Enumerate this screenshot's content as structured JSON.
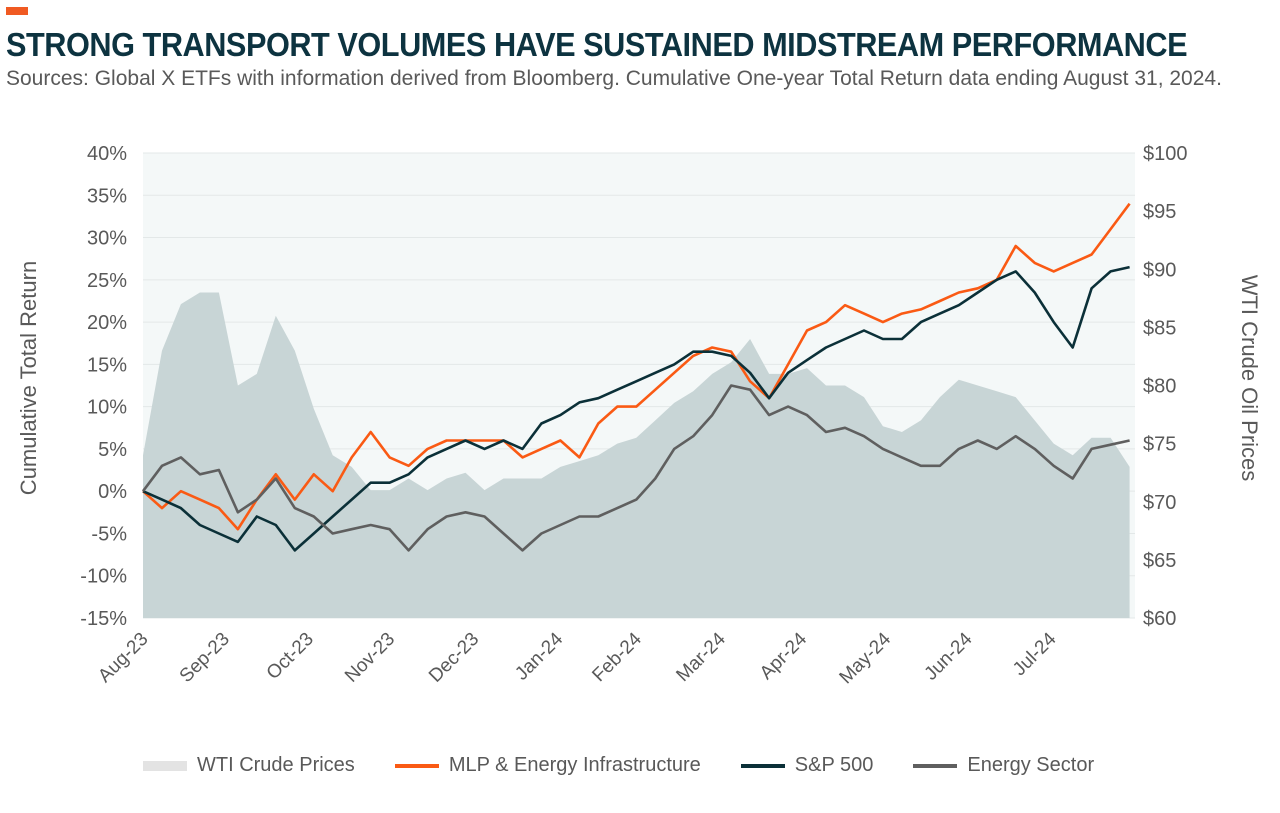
{
  "header": {
    "title": "STRONG TRANSPORT VOLUMES HAVE SUSTAINED MIDSTREAM PERFORMANCE",
    "subtitle": "Sources: Global X ETFs with information derived from Bloomberg. Cumulative One-year Total Return data ending August 31, 2024."
  },
  "colors": {
    "accent": "#f05a22",
    "title": "#0d3340",
    "wti": "#c8d5d6",
    "mlp": "#fa5a14",
    "sp500": "#0b3038",
    "energy": "#5f5f5f",
    "grid": "#e3e8e8",
    "plot_bg": "#f4f8f8"
  },
  "chart_data": {
    "type": "line",
    "ylabel": "Cumulative Total Return",
    "y2label": "WTI Crude Oil Prices",
    "ylim": [
      -15,
      40
    ],
    "y2lim": [
      60,
      100
    ],
    "yticks": [
      "-15%",
      "-10%",
      "-5%",
      "0%",
      "5%",
      "10%",
      "15%",
      "20%",
      "25%",
      "30%",
      "35%",
      "40%"
    ],
    "y2ticks": [
      "$60",
      "$65",
      "$70",
      "$75",
      "$80",
      "$85",
      "$90",
      "$95",
      "$100"
    ],
    "xticks": [
      "Aug-23",
      "Sep-23",
      "Oct-23",
      "Nov-23",
      "Dec-23",
      "Jan-24",
      "Feb-24",
      "Mar-24",
      "Apr-24",
      "May-24",
      "Jun-24",
      "Jul-24"
    ],
    "xtick_dates": [
      "2023-08-31",
      "2023-09-30",
      "2023-10-31",
      "2023-11-30",
      "2023-12-31",
      "2024-01-31",
      "2024-02-29",
      "2024-03-31",
      "2024-04-30",
      "2024-05-31",
      "2024-06-30",
      "2024-07-31"
    ],
    "xlim": [
      "2023-08-31",
      "2024-08-31"
    ],
    "grid": true,
    "legend_position": "bottom",
    "dates": [
      "2023-08-31",
      "2023-09-07",
      "2023-09-14",
      "2023-09-21",
      "2023-09-28",
      "2023-10-05",
      "2023-10-12",
      "2023-10-19",
      "2023-10-26",
      "2023-11-02",
      "2023-11-09",
      "2023-11-16",
      "2023-11-23",
      "2023-11-30",
      "2023-12-07",
      "2023-12-14",
      "2023-12-21",
      "2023-12-28",
      "2024-01-04",
      "2024-01-11",
      "2024-01-18",
      "2024-01-25",
      "2024-02-01",
      "2024-02-08",
      "2024-02-15",
      "2024-02-22",
      "2024-02-29",
      "2024-03-07",
      "2024-03-14",
      "2024-03-21",
      "2024-03-28",
      "2024-04-04",
      "2024-04-11",
      "2024-04-18",
      "2024-04-25",
      "2024-05-02",
      "2024-05-09",
      "2024-05-16",
      "2024-05-23",
      "2024-05-30",
      "2024-06-06",
      "2024-06-13",
      "2024-06-20",
      "2024-06-27",
      "2024-07-04",
      "2024-07-11",
      "2024-07-18",
      "2024-07-25",
      "2024-08-01",
      "2024-08-08",
      "2024-08-15",
      "2024-08-22",
      "2024-08-29"
    ],
    "series": [
      {
        "name": "WTI Crude Prices",
        "type": "area",
        "axis": "right",
        "values": [
          74,
          83,
          87,
          88,
          88,
          80,
          81,
          86,
          83,
          78,
          74,
          73,
          71,
          71,
          72,
          71,
          72,
          72.5,
          71,
          72,
          72,
          72,
          73,
          73.5,
          74,
          75,
          75.5,
          77,
          78.5,
          79.5,
          81,
          82,
          84,
          81,
          81,
          81.5,
          80,
          80,
          79,
          76.5,
          76,
          77,
          79,
          80.5,
          80,
          79.5,
          79,
          77,
          75,
          74,
          75.5,
          75.5,
          73
        ]
      },
      {
        "name": "MLP & Energy Infrastructure",
        "type": "line",
        "axis": "left",
        "values": [
          0,
          -2,
          0,
          -1,
          -2,
          -4.5,
          -1,
          2,
          -1,
          2,
          0,
          4,
          7,
          4,
          3,
          5,
          6,
          6,
          6,
          6,
          4,
          5,
          6,
          4,
          8,
          10,
          10,
          12,
          14,
          16,
          17,
          16.5,
          13,
          11,
          15,
          19,
          20,
          22,
          21,
          20,
          21,
          21.5,
          22.5,
          23.5,
          24,
          25,
          29,
          27,
          26,
          27,
          28,
          31,
          34
        ]
      },
      {
        "name": "S&P 500",
        "type": "line",
        "axis": "left",
        "values": [
          0,
          -1,
          -2,
          -4,
          -5,
          -6,
          -3,
          -4,
          -7,
          -5,
          -3,
          -1,
          1,
          1,
          2,
          4,
          5,
          6,
          5,
          6,
          5,
          8,
          9,
          10.5,
          11,
          12,
          13,
          14,
          15,
          16.5,
          16.5,
          16,
          14,
          11,
          14,
          15.5,
          17,
          18,
          19,
          18,
          18,
          20,
          21,
          22,
          23.5,
          25,
          26,
          23.5,
          20,
          17,
          24,
          26,
          26.5
        ]
      },
      {
        "name": "Energy Sector",
        "type": "line",
        "axis": "left",
        "values": [
          0,
          3,
          4,
          2,
          2.5,
          -2.5,
          -1,
          1.5,
          -2,
          -3,
          -5,
          -4.5,
          -4,
          -4.5,
          -7,
          -4.5,
          -3,
          -2.5,
          -3,
          -5,
          -7,
          -5,
          -4,
          -3,
          -3,
          -2,
          -1,
          1.5,
          5,
          6.5,
          9,
          12.5,
          12,
          9,
          10,
          9,
          7,
          7.5,
          6.5,
          5,
          4,
          3,
          3,
          5,
          6,
          5,
          6.5,
          5,
          3,
          1.5,
          5,
          5.5,
          6
        ]
      }
    ]
  }
}
